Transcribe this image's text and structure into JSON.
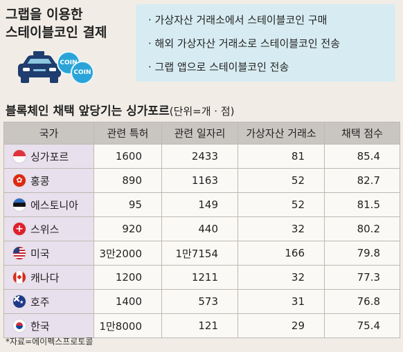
{
  "header": {
    "title_line1": "그랩을 이용한",
    "title_line2": "스테이블코인 결제",
    "coin_label_1": "COIN",
    "coin_label_2": "COIN"
  },
  "bullets": [
    "· 가상자산 거래소에서 스테이블코인 구매",
    "· 해외 가상자산 거래소로 스테이블코인 전송",
    "· 그랩 앱으로 스테이블코인 전송"
  ],
  "section": {
    "title": "블록체인 채택 앞당기는 싱가포르",
    "unit": "(단위=개 · 점)"
  },
  "table": {
    "headers": [
      "국가",
      "관련 특허",
      "관련 일자리",
      "가상자산 거래소",
      "채택 점수"
    ],
    "rows": [
      {
        "country": "싱가포르",
        "flag": "singapore-flag-icon",
        "patents": "1600",
        "jobs": "2433",
        "exchanges": "81",
        "score": "85.4"
      },
      {
        "country": "홍콩",
        "flag": "hongkong-flag-icon",
        "patents": "890",
        "jobs": "1163",
        "exchanges": "52",
        "score": "82.7"
      },
      {
        "country": "에스토니아",
        "flag": "estonia-flag-icon",
        "patents": "95",
        "jobs": "149",
        "exchanges": "52",
        "score": "81.5"
      },
      {
        "country": "스위스",
        "flag": "switzerland-flag-icon",
        "patents": "920",
        "jobs": "440",
        "exchanges": "32",
        "score": "80.2"
      },
      {
        "country": "미국",
        "flag": "usa-flag-icon",
        "patents": "3만2000",
        "jobs": "1만7154",
        "exchanges": "166",
        "score": "79.8"
      },
      {
        "country": "캐나다",
        "flag": "canada-flag-icon",
        "patents": "1200",
        "jobs": "1211",
        "exchanges": "32",
        "score": "77.3"
      },
      {
        "country": "호주",
        "flag": "australia-flag-icon",
        "patents": "1400",
        "jobs": "573",
        "exchanges": "31",
        "score": "76.8"
      },
      {
        "country": "한국",
        "flag": "korea-flag-icon",
        "patents": "1만8000",
        "jobs": "121",
        "exchanges": "29",
        "score": "75.4"
      }
    ]
  },
  "source": "*자료=에이펙스프로토콜",
  "colors": {
    "background": "#f1ede6",
    "bullet_box": "#d7ecf2",
    "header_row": "#c9c6c2",
    "country_col": "#e8e0ec",
    "coin": "#2aa4d8",
    "taxi": "#1f3d6e"
  }
}
